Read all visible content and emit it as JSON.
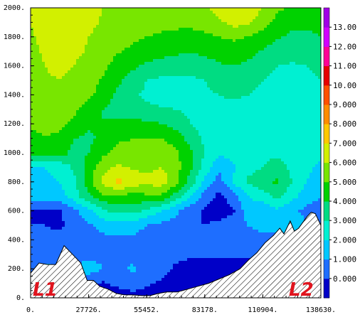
{
  "chart_data": {
    "type": "heatmap",
    "subtype": "filled-contour cross-section",
    "x_ticks": [
      "0.",
      "27726.",
      "55452.",
      "83178.",
      "110904.",
      "138630."
    ],
    "y_ticks": [
      "0.",
      "200.",
      "400.",
      "600.",
      "800.",
      "1000.",
      "1200.",
      "1400.",
      "1600.",
      "1800.",
      "2000."
    ],
    "xlim": [
      0,
      138630
    ],
    "ylim": [
      0,
      2000
    ],
    "colorbar": {
      "levels": [
        0,
        1,
        2,
        3,
        4,
        5,
        6,
        7,
        8,
        9,
        10,
        11,
        12,
        13,
        14
      ],
      "labels": [
        "0.000",
        "1.000",
        "2.000",
        "3.000",
        "4.000",
        "5.000",
        "6.000",
        "7.000",
        "8.000",
        "9.000",
        "10.00",
        "11.00",
        "12.00",
        "13.00"
      ],
      "colors": [
        "#0000c8",
        "#1e6eff",
        "#00c8ff",
        "#00f0d2",
        "#00dc82",
        "#00d200",
        "#78e600",
        "#d2f000",
        "#ffc800",
        "#ff8c00",
        "#ff5000",
        "#e60000",
        "#ff0096",
        "#d200ff",
        "#a000e6"
      ]
    },
    "field_grid": {
      "x": [
        0,
        6931,
        13863,
        20794,
        27726,
        34657,
        41589,
        48520,
        55452,
        62383,
        69315,
        76246,
        83178,
        90109,
        97041,
        103972,
        110904,
        117835,
        124767,
        131698,
        138630
      ],
      "y": [
        0,
        100,
        200,
        300,
        400,
        500,
        600,
        700,
        800,
        900,
        1000,
        1100,
        1200,
        1300,
        1400,
        1500,
        1600,
        1700,
        1800,
        1900,
        2000
      ],
      "z": [
        [
          0.5,
          0.5,
          0.5,
          0.5,
          0.5,
          0.5,
          0.5,
          0.5,
          0.5,
          0.5,
          0.5,
          0.5,
          0.5,
          0.5,
          0.5,
          0.5,
          0.5,
          0.5,
          0.5,
          0.5,
          0.5
        ],
        [
          0.6,
          0.6,
          0.8,
          1.2,
          1.0,
          0.9,
          1.2,
          1.6,
          1.2,
          0.8,
          0.5,
          0.5,
          0.5,
          0.5,
          0.5,
          0.5,
          0.5,
          0.5,
          0.5,
          0.5,
          0.5
        ],
        [
          1.8,
          2.4,
          1.8,
          2.1,
          2.6,
          2.0,
          1.6,
          2.2,
          1.4,
          1.5,
          0.8,
          0.5,
          0.4,
          0.4,
          0.4,
          0.4,
          0.4,
          0.4,
          0.4,
          0.4,
          0.4
        ],
        [
          1.5,
          1.5,
          1.8,
          1.5,
          1.5,
          1.8,
          1.8,
          1.6,
          1.5,
          1.4,
          1.3,
          1.2,
          1.2,
          1.2,
          1.2,
          1.2,
          1.2,
          1.2,
          1.2,
          1.2,
          1.3
        ],
        [
          1.3,
          1.2,
          1.4,
          1.5,
          1.6,
          1.7,
          1.8,
          1.8,
          1.6,
          1.5,
          1.4,
          1.6,
          1.8,
          2.0,
          1.8,
          1.6,
          1.8,
          1.6,
          1.7,
          1.5,
          1.5
        ],
        [
          1.0,
          1.0,
          0.8,
          1.4,
          1.8,
          2.4,
          2.5,
          2.4,
          2.0,
          1.8,
          1.6,
          1.2,
          1.0,
          1.2,
          1.6,
          2.0,
          2.2,
          2.4,
          2.6,
          2.0,
          1.8
        ],
        [
          0.9,
          0.9,
          0.9,
          1.6,
          2.8,
          3.8,
          4.4,
          4.4,
          3.8,
          3.0,
          2.2,
          1.4,
          0.8,
          0.5,
          0.9,
          2.6,
          2.0,
          2.8,
          2.2,
          1.8,
          1.6
        ],
        [
          2.4,
          2.4,
          2.6,
          3.6,
          4.8,
          5.8,
          5.9,
          5.6,
          5.8,
          5.8,
          4.6,
          3.0,
          1.6,
          0.7,
          1.6,
          3.0,
          3.6,
          4.2,
          3.4,
          2.4,
          2.0
        ],
        [
          2.6,
          2.8,
          3.0,
          3.8,
          5.5,
          7.4,
          8.3,
          7.6,
          7.2,
          7.6,
          6.4,
          4.6,
          2.8,
          1.6,
          3.2,
          4.2,
          4.6,
          5.2,
          4.0,
          3.0,
          2.6
        ],
        [
          2.8,
          3.0,
          3.2,
          4.2,
          5.4,
          6.6,
          7.2,
          6.9,
          6.8,
          7.0,
          6.4,
          5.2,
          3.6,
          2.2,
          2.8,
          3.6,
          4.0,
          4.4,
          3.8,
          3.2,
          2.8
        ],
        [
          5.2,
          5.6,
          5.6,
          4.6,
          5.0,
          5.8,
          6.4,
          6.2,
          6.4,
          6.6,
          6.2,
          5.2,
          4.0,
          3.2,
          3.4,
          3.6,
          3.8,
          3.8,
          3.6,
          3.4,
          3.2
        ],
        [
          5.6,
          5.9,
          5.8,
          5.0,
          4.8,
          5.2,
          5.8,
          6.0,
          6.0,
          6.0,
          5.6,
          4.6,
          3.8,
          3.4,
          3.6,
          3.8,
          3.6,
          3.4,
          3.2,
          3.2,
          3.2
        ],
        [
          6.2,
          6.4,
          6.2,
          5.8,
          5.2,
          5.0,
          5.2,
          5.4,
          5.2,
          5.0,
          4.6,
          4.0,
          3.6,
          3.4,
          3.4,
          3.4,
          3.2,
          3.2,
          3.1,
          3.2,
          3.2
        ],
        [
          6.4,
          6.6,
          6.6,
          6.2,
          5.6,
          5.0,
          4.6,
          4.4,
          4.2,
          4.1,
          4.0,
          3.8,
          3.6,
          3.6,
          3.6,
          3.6,
          3.4,
          3.2,
          3.2,
          3.3,
          3.4
        ],
        [
          6.5,
          6.8,
          6.8,
          6.6,
          6.2,
          5.6,
          4.8,
          4.2,
          3.8,
          3.6,
          3.6,
          3.6,
          3.8,
          4.0,
          4.2,
          4.0,
          3.6,
          3.3,
          3.4,
          3.6,
          3.8
        ],
        [
          6.6,
          6.9,
          7.0,
          6.8,
          6.4,
          5.9,
          5.2,
          4.6,
          4.0,
          3.8,
          3.8,
          3.8,
          4.0,
          4.4,
          4.6,
          4.4,
          4.0,
          3.6,
          3.6,
          3.8,
          4.0
        ],
        [
          6.7,
          7.0,
          7.2,
          7.0,
          6.6,
          6.2,
          5.6,
          5.2,
          4.8,
          4.6,
          4.4,
          4.4,
          4.6,
          4.9,
          5.0,
          4.8,
          4.4,
          4.0,
          3.9,
          4.0,
          4.2
        ],
        [
          6.8,
          7.1,
          7.3,
          7.2,
          6.9,
          6.5,
          6.1,
          5.8,
          5.6,
          5.4,
          5.2,
          5.1,
          5.2,
          5.4,
          5.5,
          5.3,
          4.9,
          4.5,
          4.3,
          4.4,
          4.6
        ],
        [
          6.9,
          7.2,
          7.4,
          7.3,
          7.0,
          6.7,
          6.4,
          6.2,
          6.0,
          5.9,
          5.8,
          5.7,
          5.8,
          6.0,
          6.2,
          6.0,
          5.6,
          5.1,
          4.8,
          4.8,
          5.0
        ],
        [
          7.0,
          7.3,
          7.5,
          7.4,
          7.2,
          6.9,
          6.6,
          6.4,
          6.3,
          6.2,
          6.2,
          6.2,
          6.4,
          6.8,
          7.4,
          7.2,
          6.4,
          5.7,
          5.3,
          5.2,
          5.4
        ],
        [
          7.0,
          7.4,
          7.6,
          7.5,
          7.3,
          7.0,
          6.8,
          6.6,
          6.5,
          6.4,
          6.4,
          6.5,
          6.8,
          7.4,
          8.0,
          7.8,
          7.0,
          6.2,
          5.8,
          5.6,
          5.7
        ]
      ]
    },
    "terrain": {
      "x": [
        0,
        4000,
        8000,
        12000,
        16000,
        20000,
        24000,
        27000,
        30000,
        33000,
        37000,
        41000,
        45000,
        49000,
        53000,
        57000,
        61000,
        65000,
        70000,
        75000,
        80000,
        85000,
        90000,
        95000,
        100000,
        104000,
        108000,
        112000,
        116000,
        119000,
        121000,
        124000,
        126000,
        128000,
        130000,
        132000,
        134000,
        136000,
        138630
      ],
      "y": [
        170,
        240,
        230,
        230,
        360,
        300,
        240,
        120,
        120,
        80,
        60,
        30,
        20,
        20,
        15,
        15,
        30,
        40,
        40,
        60,
        80,
        100,
        130,
        160,
        200,
        260,
        310,
        380,
        430,
        480,
        440,
        530,
        460,
        480,
        520,
        560,
        590,
        580,
        500
      ]
    },
    "annotations": [
      "L1",
      "L2"
    ]
  }
}
